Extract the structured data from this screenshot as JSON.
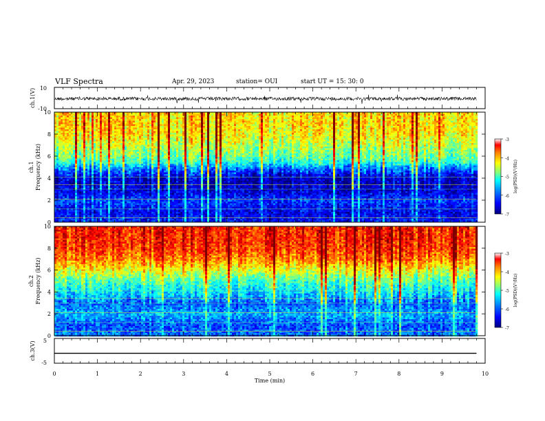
{
  "header": {
    "title": "VLF Spectra",
    "date": "Apr. 29, 2023",
    "station": "station= OUI",
    "start": "start UT =  15: 30: 0"
  },
  "chart_data": [
    {
      "type": "line",
      "panel": "ch1-waveform",
      "ylabel": "ch.1(V)",
      "ylim": [
        -10,
        10
      ],
      "yticks": [
        "10",
        "-10"
      ],
      "xlim": [
        0,
        10
      ],
      "description_values": {
        "baseline": 0,
        "amplitude_typical": 1.5
      }
    },
    {
      "type": "heatmap",
      "panel": "ch1-spectrogram",
      "ylabel": "ch.1\nFrequency (kHz)",
      "ylim": [
        0,
        10
      ],
      "yticks": [
        "0",
        "2",
        "4",
        "6",
        "8",
        "10"
      ],
      "xlim": [
        0,
        9.8
      ],
      "band_profile_kHz": [
        {
          "f": 0.0,
          "level": -6.4
        },
        {
          "f": 1.0,
          "level": -6.6
        },
        {
          "f": 2.0,
          "level": -6.3
        },
        {
          "f": 3.0,
          "level": -6.7
        },
        {
          "f": 4.0,
          "level": -6.8
        },
        {
          "f": 5.0,
          "level": -6.0
        },
        {
          "f": 5.5,
          "level": -5.4
        },
        {
          "f": 6.0,
          "level": -5.1
        },
        {
          "f": 7.0,
          "level": -4.8
        },
        {
          "f": 8.0,
          "level": -4.5
        },
        {
          "f": 9.0,
          "level": -4.4
        },
        {
          "f": 10.0,
          "level": -4.4
        }
      ],
      "colorbar": {
        "label": "log(PSD)(V²/Hz)",
        "range": [
          -7,
          -3
        ],
        "ticks": [
          "-3",
          "-4",
          "-5",
          "-6",
          "-7"
        ]
      }
    },
    {
      "type": "heatmap",
      "panel": "ch2-spectrogram",
      "ylabel": "ch.2\nFrequency (kHz)",
      "ylim": [
        0,
        10
      ],
      "yticks": [
        "0",
        "2",
        "4",
        "6",
        "8",
        "10"
      ],
      "xlim": [
        0,
        9.8
      ],
      "band_profile_kHz": [
        {
          "f": 0.0,
          "level": -6.0
        },
        {
          "f": 1.0,
          "level": -6.2
        },
        {
          "f": 2.0,
          "level": -5.8
        },
        {
          "f": 3.0,
          "level": -6.1
        },
        {
          "f": 4.0,
          "level": -5.6
        },
        {
          "f": 5.0,
          "level": -5.2
        },
        {
          "f": 6.0,
          "level": -4.6
        },
        {
          "f": 7.0,
          "level": -4.0
        },
        {
          "f": 8.0,
          "level": -3.7
        },
        {
          "f": 9.0,
          "level": -3.6
        },
        {
          "f": 10.0,
          "level": -3.6
        }
      ],
      "colorbar": {
        "label": "log(PSD)(V²/Hz)",
        "range": [
          -7,
          -3
        ],
        "ticks": [
          "-3",
          "-4",
          "-5",
          "-6",
          "-7"
        ]
      }
    },
    {
      "type": "line",
      "panel": "ch3-waveform",
      "ylabel": "ch.3(V)",
      "ylim": [
        -5,
        5
      ],
      "yticks": [
        "5",
        "-5"
      ],
      "xlim": [
        0,
        9.8
      ],
      "values": [
        {
          "x": 0,
          "y": -1
        },
        {
          "x": 9.8,
          "y": -1
        }
      ],
      "xlabel": "Time (min)",
      "xticks": [
        "0",
        "1",
        "2",
        "3",
        "4",
        "5",
        "6",
        "7",
        "8",
        "9",
        "10"
      ]
    }
  ],
  "colors": {
    "cmap": [
      "#00007f",
      "#0000ff",
      "#007fff",
      "#00ffff",
      "#7fff7f",
      "#ffff00",
      "#ff7f00",
      "#ff0000",
      "#7f0000"
    ]
  }
}
